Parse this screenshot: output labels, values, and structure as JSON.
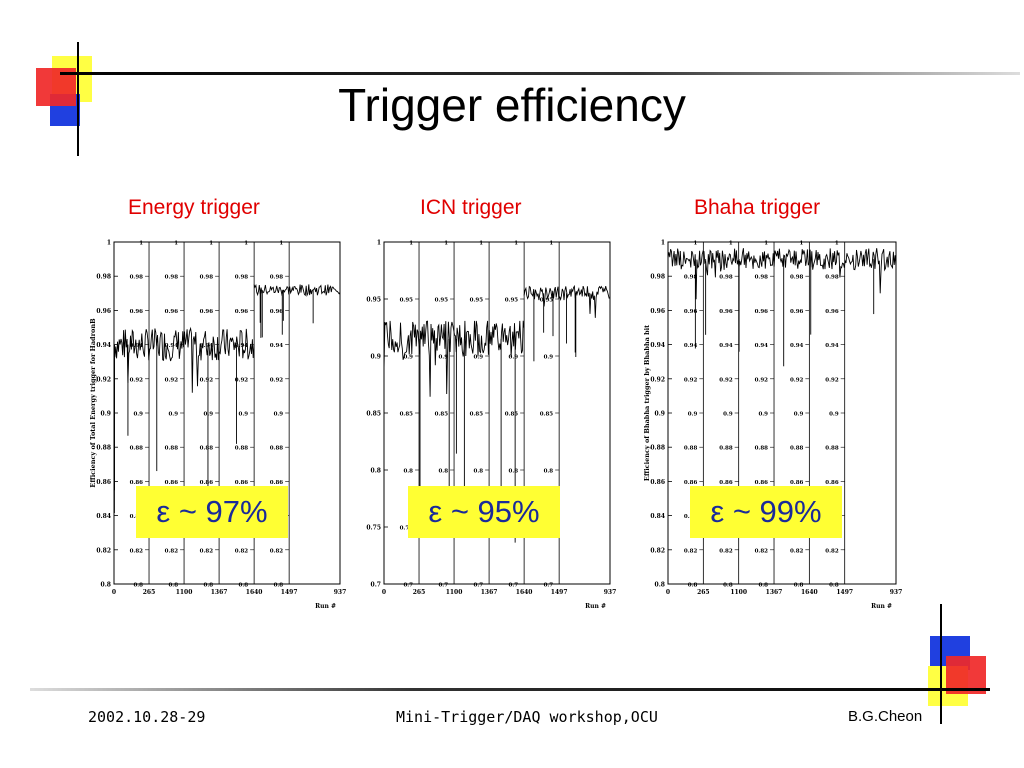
{
  "slide": {
    "title": "Trigger efficiency",
    "footer_left": "2002.10.28-29",
    "footer_center": "Mini-Trigger/DAQ workshop,OCU",
    "footer_right": "B.G.Cheon"
  },
  "chart_data": [
    {
      "type": "line",
      "panel_title": "Energy trigger",
      "ylabel": "Efficiency of Total Energy trigger for HadronB",
      "xlabel": "Run #",
      "x_ticks": [
        "0",
        "265",
        "1100",
        "1367",
        "1640",
        "1497",
        "937"
      ],
      "y_ticks": [
        "0.8",
        "0.82",
        "0.84",
        "0.86",
        "0.88",
        "0.9",
        "0.92",
        "0.94",
        "0.96",
        "0.98",
        "1"
      ],
      "ylim": [
        0.8,
        1.0
      ],
      "segments": [
        {
          "x_range": [
            0,
            0.62
          ],
          "mean": 0.94,
          "noise": 0.006
        },
        {
          "x_range": [
            0.62,
            1.0
          ],
          "mean": 0.972,
          "noise": 0.002
        }
      ],
      "annotation": "ε ~ 97%"
    },
    {
      "type": "line",
      "panel_title": "ICN trigger",
      "ylabel": "",
      "xlabel": "Run #",
      "x_ticks": [
        "0",
        "265",
        "1100",
        "1367",
        "1640",
        "1497",
        "937"
      ],
      "y_ticks": [
        "0.7",
        "0.75",
        "0.8",
        "0.85",
        "0.9",
        "0.95",
        "1"
      ],
      "ylim": [
        0.7,
        1.0
      ],
      "segments": [
        {
          "x_range": [
            0,
            0.62
          ],
          "mean": 0.915,
          "noise": 0.01
        },
        {
          "x_range": [
            0.62,
            1.0
          ],
          "mean": 0.955,
          "noise": 0.004
        }
      ],
      "annotation": "ε ~ 95%"
    },
    {
      "type": "line",
      "panel_title": "Bhaha trigger",
      "ylabel": "Efficiency of Bhabha trigger by Bhabha bit",
      "xlabel": "Run #",
      "x_ticks": [
        "0",
        "265",
        "1100",
        "1367",
        "1640",
        "1497",
        "937"
      ],
      "y_ticks": [
        "0.8",
        "0.82",
        "0.84",
        "0.86",
        "0.88",
        "0.9",
        "0.92",
        "0.94",
        "0.96",
        "0.98",
        "1"
      ],
      "ylim": [
        0.8,
        1.0
      ],
      "segments": [
        {
          "x_range": [
            0,
            1.0
          ],
          "mean": 0.99,
          "noise": 0.004
        }
      ],
      "annotation": "ε ~ 99%"
    }
  ],
  "colors": {
    "accent_red": "#e8202a",
    "accent_blue": "#1030d8",
    "accent_yellow": "#ffff33",
    "title_red": "#e00000",
    "annotation_blue": "#1a2a9a"
  }
}
